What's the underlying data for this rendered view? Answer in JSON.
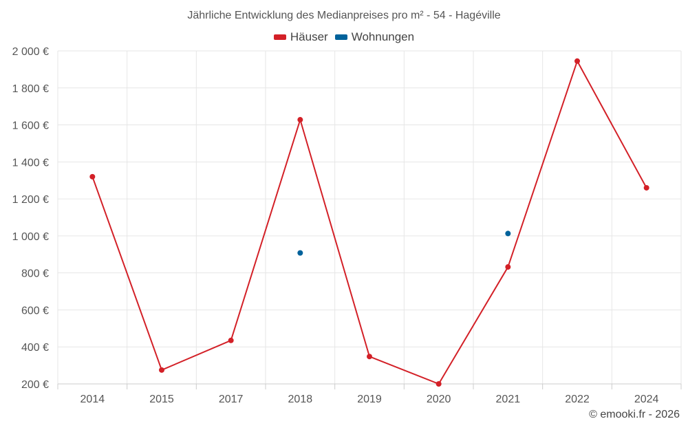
{
  "chart_data": {
    "type": "line",
    "title": "Jährliche Entwicklung des Medianpreises pro m² - 54 - Hagéville",
    "categories": [
      "2014",
      "2015",
      "2017",
      "2018",
      "2019",
      "2020",
      "2021",
      "2022",
      "2024"
    ],
    "yticks": [
      "2 000 €",
      "1 800 €",
      "1 600 €",
      "1 400 €",
      "1 200 €",
      "1 000 €",
      "800 €",
      "600 €",
      "400 €",
      "200 €"
    ],
    "ylim": [
      200,
      2000
    ],
    "grid": true,
    "legend_position": "top-center",
    "series": [
      {
        "name": "Häuser",
        "color": "#d32027",
        "values": [
          1320,
          275,
          435,
          1628,
          348,
          200,
          832,
          1945,
          1260
        ]
      },
      {
        "name": "Wohnungen",
        "color": "#00629b",
        "values": [
          null,
          null,
          null,
          908,
          null,
          null,
          1013,
          null,
          null
        ]
      }
    ]
  },
  "footer": {
    "copyright": "© emooki.fr - 2026"
  }
}
